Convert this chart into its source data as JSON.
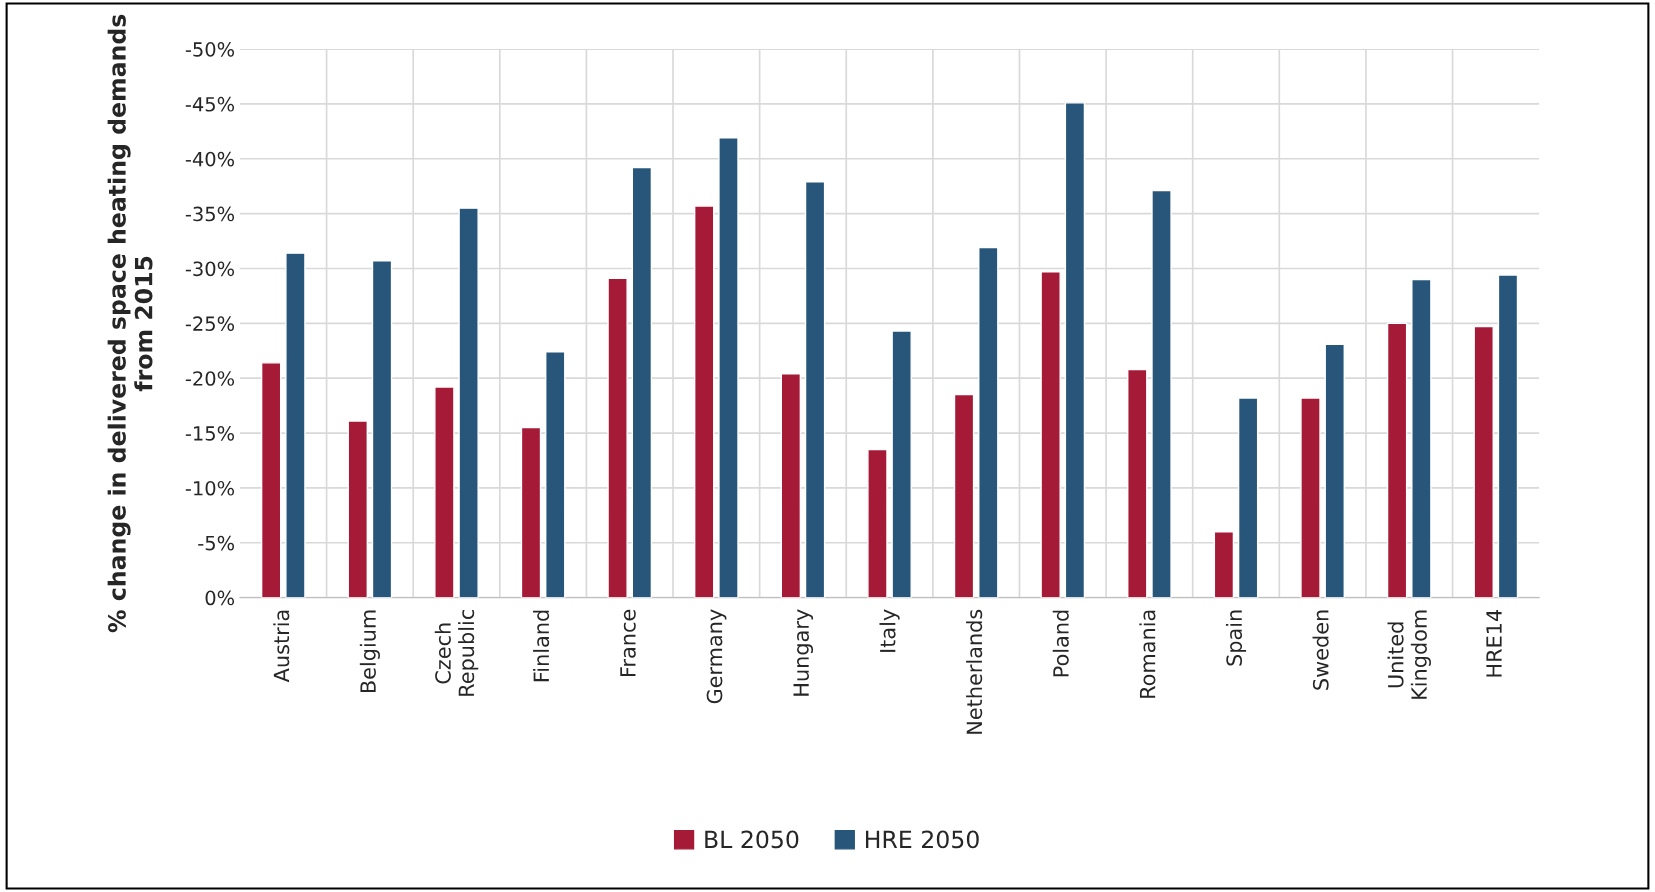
{
  "chart_data": {
    "type": "bar",
    "ylabel": "% change in delivered space heating demands from 2015",
    "categories": [
      "Austria",
      "Belgium",
      "Czech\nRepublic",
      "Finland",
      "France",
      "Germany",
      "Hungary",
      "Italy",
      "Netherlands",
      "Poland",
      "Romania",
      "Spain",
      "Sweden",
      "United\nKingdom",
      "HRE14"
    ],
    "series": [
      {
        "name": "BL 2050",
        "color": "#a51a37",
        "values": [
          -21.4,
          -16.1,
          -19.2,
          -15.5,
          -29.1,
          -35.7,
          -20.4,
          -13.5,
          -18.5,
          -29.7,
          -20.8,
          -6.0,
          -18.2,
          -25.0,
          -24.7
        ]
      },
      {
        "name": "HRE 2050",
        "color": "#27567a",
        "values": [
          -31.4,
          -30.7,
          -35.5,
          -22.4,
          -39.2,
          -41.9,
          -37.9,
          -24.3,
          -31.9,
          -45.1,
          -37.1,
          -18.2,
          -23.1,
          -29.0,
          -29.4
        ]
      }
    ],
    "ylim": [
      0,
      -50
    ],
    "yticks": [
      {
        "value": 0,
        "label": "0%"
      },
      {
        "value": -5,
        "label": "-5%"
      },
      {
        "value": -10,
        "label": "-10%"
      },
      {
        "value": -15,
        "label": "-15%"
      },
      {
        "value": -20,
        "label": "-20%"
      },
      {
        "value": -25,
        "label": "-25%"
      },
      {
        "value": -30,
        "label": "-30%"
      },
      {
        "value": -35,
        "label": "-35%"
      },
      {
        "value": -40,
        "label": "-40%"
      },
      {
        "value": -45,
        "label": "-45%"
      },
      {
        "value": -50,
        "label": "-50%"
      }
    ],
    "grid": true,
    "legend": "bottom"
  }
}
